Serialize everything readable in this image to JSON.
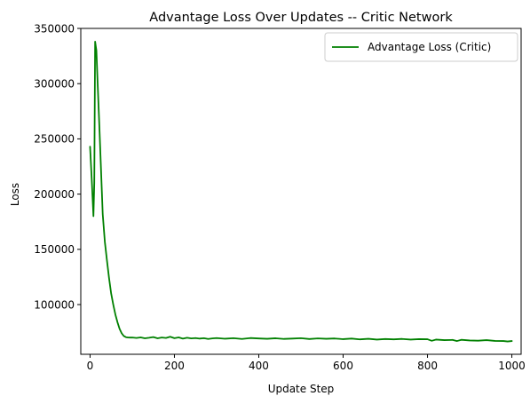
{
  "chart_data": {
    "type": "line",
    "title": "Advantage Loss Over Updates -- Critic Network",
    "xlabel": "Update Step",
    "ylabel": "Loss",
    "xlim": [
      -22,
      1022
    ],
    "ylim": [
      55000,
      350000
    ],
    "x_ticks": [
      0,
      200,
      400,
      600,
      800,
      1000
    ],
    "x_tick_labels": [
      "0",
      "200",
      "400",
      "600",
      "800",
      "1000"
    ],
    "y_ticks": [
      100000,
      150000,
      200000,
      250000,
      300000,
      350000
    ],
    "y_tick_labels": [
      "100000",
      "150000",
      "200000",
      "250000",
      "300000",
      "350000"
    ],
    "grid": false,
    "legend_position": "top-right",
    "series": [
      {
        "name": "Advantage Loss (Critic)",
        "color": "#008000",
        "x": [
          0,
          4,
          8,
          10,
          12,
          15,
          18,
          22,
          26,
          30,
          35,
          40,
          45,
          50,
          55,
          60,
          65,
          70,
          75,
          80,
          85,
          90,
          95,
          100,
          110,
          120,
          130,
          140,
          150,
          160,
          170,
          180,
          190,
          200,
          210,
          220,
          230,
          240,
          250,
          260,
          270,
          280,
          290,
          300,
          320,
          340,
          360,
          380,
          400,
          420,
          440,
          460,
          480,
          500,
          520,
          540,
          560,
          580,
          600,
          620,
          640,
          660,
          680,
          700,
          720,
          740,
          760,
          780,
          800,
          810,
          820,
          840,
          860,
          870,
          880,
          900,
          920,
          940,
          960,
          980,
          990,
          1000
        ],
        "y": [
          243000,
          213000,
          180000,
          210000,
          338000,
          330000,
          300000,
          262000,
          222000,
          182000,
          157000,
          140000,
          124000,
          110000,
          100000,
          91000,
          84000,
          78000,
          74000,
          71500,
          70500,
          70200,
          70100,
          70200,
          69800,
          70300,
          69500,
          70000,
          70600,
          69500,
          70200,
          69800,
          70900,
          69600,
          70300,
          69200,
          70000,
          69400,
          69700,
          69200,
          69600,
          68900,
          69400,
          69700,
          69100,
          69600,
          68900,
          69700,
          69300,
          69000,
          69500,
          68900,
          69200,
          69600,
          68800,
          69400,
          69000,
          69300,
          68700,
          69200,
          68500,
          69000,
          68300,
          68800,
          68500,
          68900,
          68300,
          68700,
          68600,
          67200,
          68300,
          67800,
          68000,
          67000,
          68100,
          67500,
          67300,
          67800,
          67100,
          67000,
          66600,
          67000
        ]
      }
    ]
  }
}
